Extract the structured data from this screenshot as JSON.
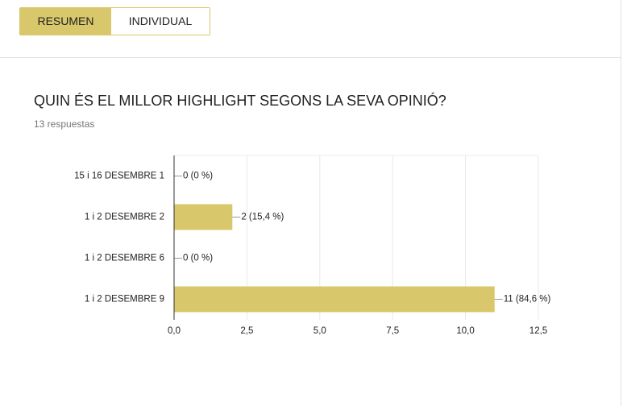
{
  "tabs": [
    "RESUMEN",
    "INDIVIDUAL"
  ],
  "question": {
    "title": "QUIN ÉS EL MILLOR HIGHLIGHT SEGONS LA SEVA OPINIÓ?",
    "responses": "13 respuestas"
  },
  "chart_data": {
    "type": "hbar",
    "categories": [
      "15 i 16 DESEMBRE 1",
      "1 i 2 DESEMBRE 2",
      "1 i 2 DESEMBRE 6",
      "1 i 2 DESEMBRE 9"
    ],
    "values": [
      0,
      2,
      0,
      11
    ],
    "value_labels": [
      "0 (0 %)",
      "2 (15,4 %)",
      "0 (0 %)",
      "11 (84,6 %)"
    ],
    "color": "#d8c76b",
    "xlim": [
      0,
      12.5
    ],
    "xticks": [
      {
        "value": 0,
        "label": "0,0"
      },
      {
        "value": 2.5,
        "label": "2,5"
      },
      {
        "value": 5,
        "label": "5,0"
      },
      {
        "value": 7.5,
        "label": "7,5"
      },
      {
        "value": 10,
        "label": "10,0"
      },
      {
        "value": 12.5,
        "label": "12,5"
      }
    ],
    "grid": true
  }
}
